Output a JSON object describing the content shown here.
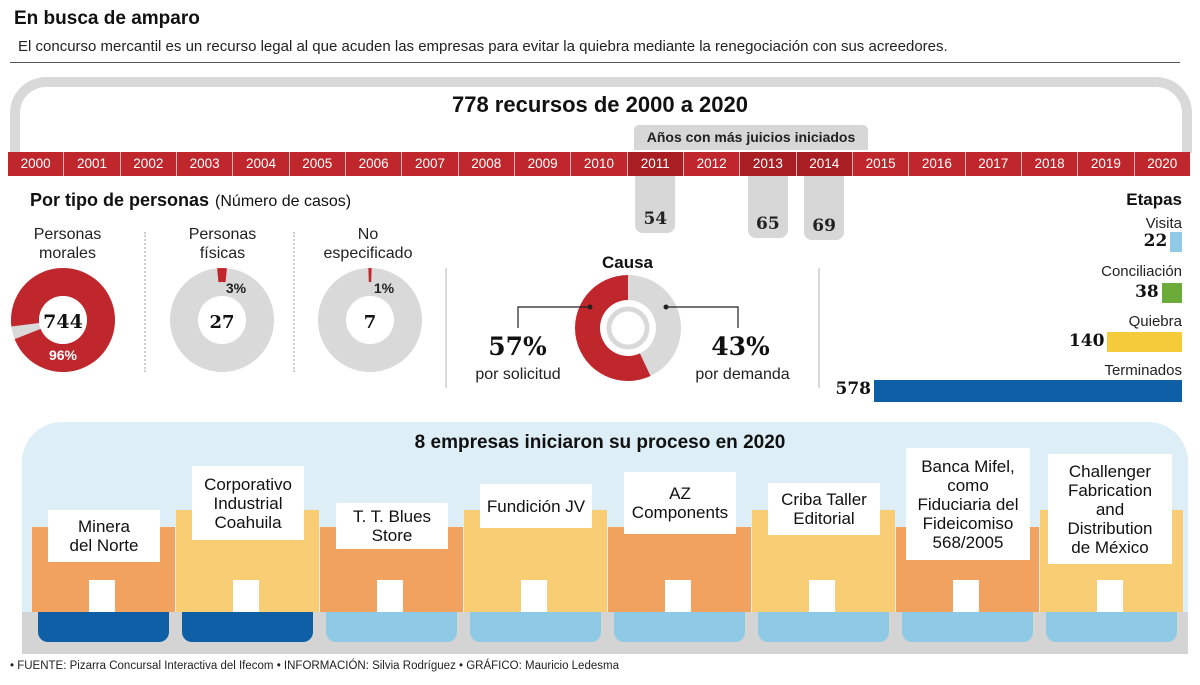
{
  "header": {
    "title": "En busca de amparo",
    "subtitle": "El concurso mercantil es un recurso legal al que acuden las empresas para evitar la quiebra mediante la renegociación con sus acreedores."
  },
  "timeline": {
    "title": "778 recursos de 2000 a 2020",
    "highlight_label": "Años con más juicios iniciados",
    "years": [
      "2000",
      "2001",
      "2002",
      "2003",
      "2004",
      "2005",
      "2006",
      "2007",
      "2008",
      "2009",
      "2010",
      "2011",
      "2012",
      "2013",
      "2014",
      "2015",
      "2016",
      "2017",
      "2018",
      "2019",
      "2020"
    ],
    "highlights": [
      {
        "year": "2011",
        "value": "54"
      },
      {
        "year": "2013",
        "value": "65"
      },
      {
        "year": "2014",
        "value": "69"
      }
    ]
  },
  "persons": {
    "heading": "Por tipo de personas",
    "heading_sub": "(Número de casos)",
    "donuts": [
      {
        "label_lines": [
          "Personas",
          "morales"
        ],
        "value": "744",
        "pct": "96%",
        "fraction": 0.96
      },
      {
        "label_lines": [
          "Personas",
          "físicas"
        ],
        "value": "27",
        "pct": "3%",
        "fraction": 0.03
      },
      {
        "label_lines": [
          "No",
          "especificado"
        ],
        "value": "7",
        "pct": "1%",
        "fraction": 0.01
      }
    ]
  },
  "cause": {
    "heading": "Causa",
    "left_pct": "57%",
    "left_label": "por solicitud",
    "right_pct": "43%",
    "right_label": "por demanda",
    "left_fraction": 0.57
  },
  "stages": {
    "heading": "Etapas",
    "items": [
      {
        "label": "Visita",
        "value": "22",
        "color": "#8ecae6"
      },
      {
        "label": "Conciliación",
        "value": "38",
        "color": "#6aab3a"
      },
      {
        "label": "Quiebra",
        "value": "140",
        "color": "#f5cb3c"
      },
      {
        "label": "Terminados",
        "value": "578",
        "color": "#0f5fa6"
      }
    ]
  },
  "companies": {
    "heading": "8 empresas iniciaron su proceso en 2020",
    "items": [
      {
        "lines": [
          "Minera",
          "del Norte"
        ]
      },
      {
        "lines": [
          "Corporativo",
          "Industrial",
          "Coahuila"
        ]
      },
      {
        "lines": [
          "T. T. Blues",
          "Store"
        ]
      },
      {
        "lines": [
          "Fundición JV"
        ]
      },
      {
        "lines": [
          "AZ",
          "Components"
        ]
      },
      {
        "lines": [
          "Criba Taller",
          "Editorial"
        ]
      },
      {
        "lines": [
          "Banca Mifel,",
          "como",
          "Fiduciaria del",
          "Fideicomiso",
          "568/2005"
        ]
      },
      {
        "lines": [
          "Challenger",
          "Fabrication",
          "and",
          "Distribution",
          "de México"
        ]
      }
    ]
  },
  "footer": {
    "text": "• FUENTE: Pizarra Concursal Interactiva del Ifecom • INFORMACIÓN: Silvia Rodríguez • GRÁFICO: Mauricio Ledesma"
  },
  "chart_data": [
    {
      "type": "bar",
      "title": "778 recursos de 2000 a 2020",
      "subtitle": "Años con más juicios iniciados",
      "categories": [
        "2011",
        "2013",
        "2014"
      ],
      "values": [
        54,
        65,
        69
      ]
    },
    {
      "type": "pie",
      "title": "Por tipo de personas",
      "subtitle": "(Número de casos)",
      "categories": [
        "Personas morales",
        "Personas físicas",
        "No especificado"
      ],
      "values": [
        744,
        27,
        7
      ],
      "percent_labels": [
        "96%",
        "3%",
        "1%"
      ]
    },
    {
      "type": "pie",
      "title": "Causa",
      "categories": [
        "por solicitud",
        "por demanda"
      ],
      "values": [
        57,
        43
      ]
    },
    {
      "type": "bar",
      "title": "Etapas",
      "categories": [
        "Visita",
        "Conciliación",
        "Quiebra",
        "Terminados"
      ],
      "values": [
        22,
        38,
        140,
        578
      ],
      "colors": [
        "#8ecae6",
        "#6aab3a",
        "#f5cb3c",
        "#0f5fa6"
      ]
    }
  ],
  "colors": {
    "accent_red": "#c0272d",
    "grey": "#d9d9d9",
    "panel_blue": "#ddeef7",
    "building_orange": "#f0a25e",
    "building_yellow": "#f8cd73",
    "base_dark": "#0f5fa6",
    "base_light": "#8ecae6"
  }
}
